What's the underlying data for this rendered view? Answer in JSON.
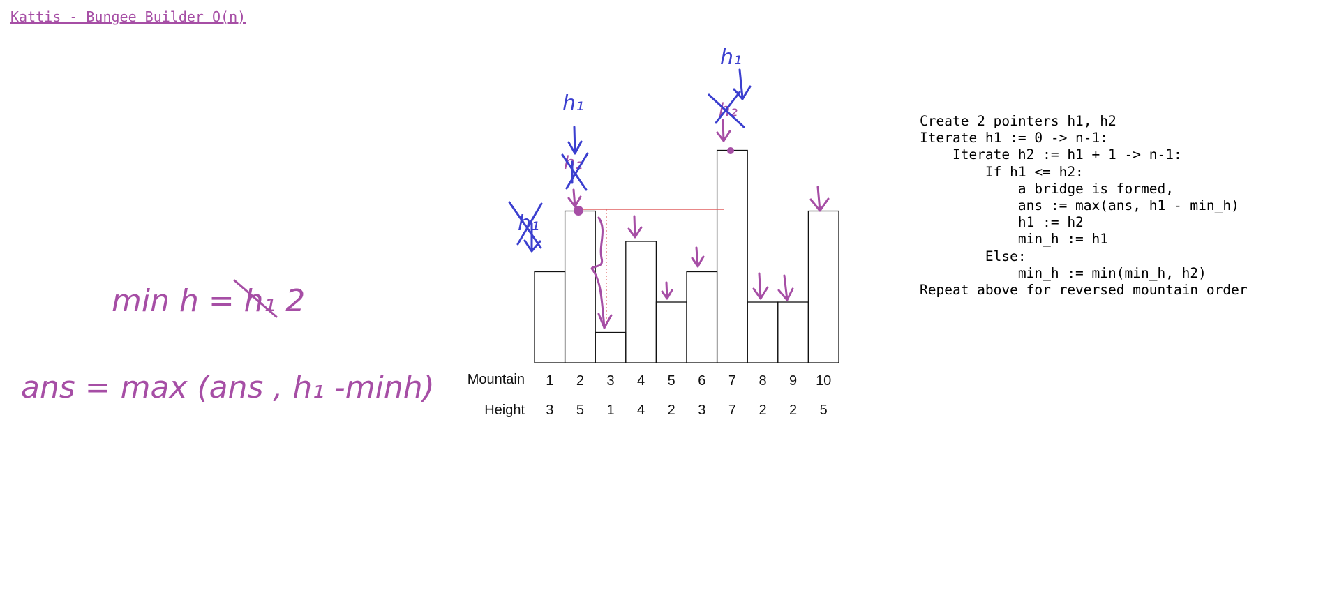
{
  "title": "Kattis - Bungee Builder O(n)",
  "chart_data": {
    "type": "bar",
    "categories": [
      "1",
      "2",
      "3",
      "4",
      "5",
      "6",
      "7",
      "8",
      "9",
      "10"
    ],
    "values": [
      3,
      5,
      1,
      4,
      2,
      3,
      7,
      2,
      2,
      5
    ],
    "row_labels": {
      "mountain": "Mountain",
      "height": "Height"
    },
    "ylim": [
      0,
      7
    ]
  },
  "code_lines": [
    "Create 2 pointers h1, h2",
    "Iterate h1 := 0 -> n-1:",
    "    Iterate h2 := h1 + 1 -> n-1:",
    "        If h1 <= h2:",
    "            a bridge is formed,",
    "            ans := max(ans, h1 - min_h)",
    "            h1 := h2",
    "            min_h := h1",
    "        Else:",
    "            min_h := min(min_h, h2)",
    "Repeat above for reversed mountain order"
  ],
  "handwritten": {
    "min_h_formula": "min h = h₁ 2",
    "ans_formula": "ans = max (ans , h₁  -minh)",
    "pointer_labels": [
      "h₁",
      "h₁"
    ],
    "crossed_labels": [
      "h₁",
      "h₂",
      "h₂"
    ]
  },
  "colors": {
    "ink_purple": "#a64ea5",
    "ink_blue": "#3b3fcf",
    "bridge_line": "#e06060",
    "bar_stroke": "#111111"
  }
}
